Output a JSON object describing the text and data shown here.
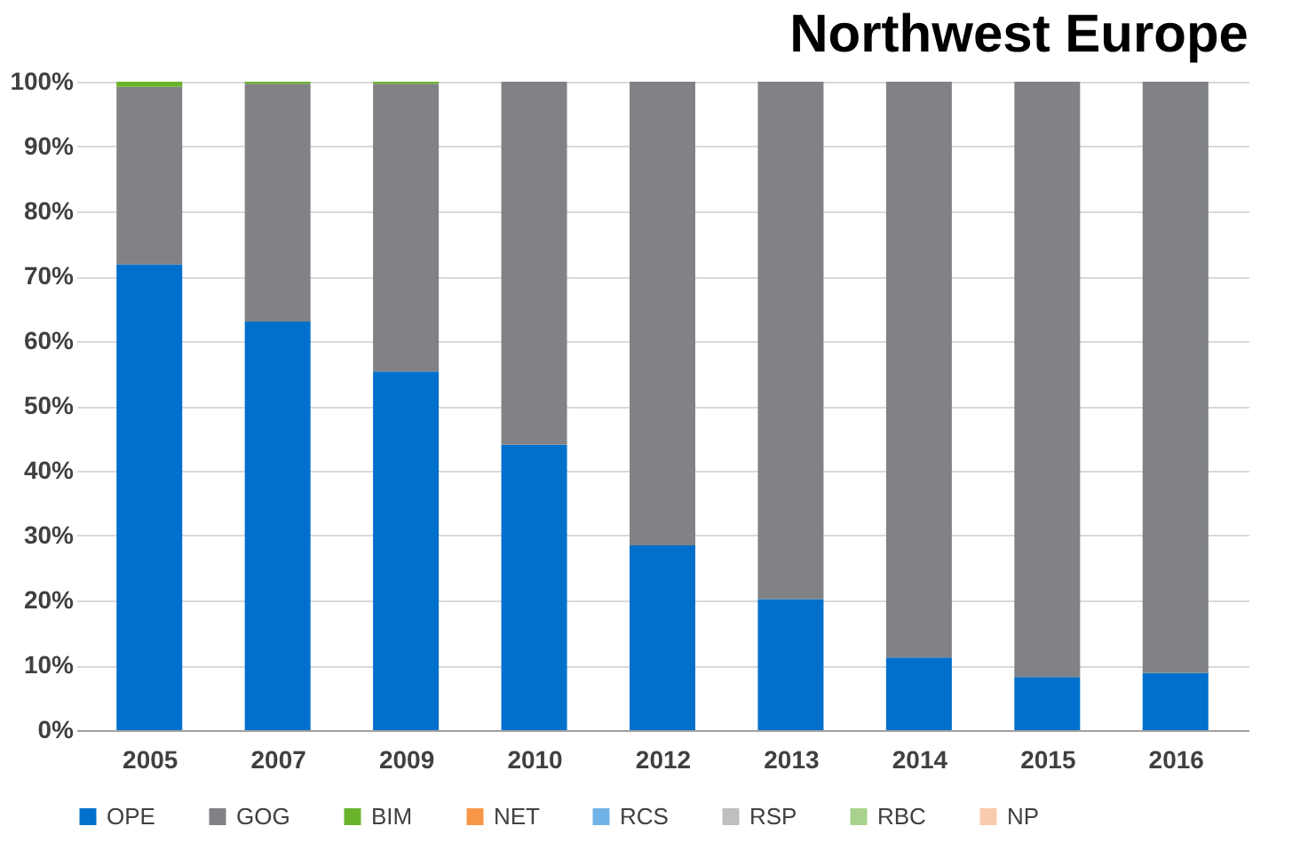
{
  "chart_data": {
    "type": "bar",
    "title": "Northwest Europe",
    "stacked": true,
    "categories": [
      "2005",
      "2007",
      "2009",
      "2010",
      "2012",
      "2013",
      "2014",
      "2015",
      "2016"
    ],
    "series": [
      {
        "name": "OPE",
        "color": "#0070cc",
        "values": [
          71.8,
          63,
          55.3,
          44,
          28.5,
          20.2,
          11.2,
          8.2,
          8.8
        ]
      },
      {
        "name": "GOG",
        "color": "#808285",
        "values": [
          27.4,
          36.7,
          44.4,
          56,
          71.5,
          79.8,
          88.8,
          91.8,
          91.2
        ]
      },
      {
        "name": "BIM",
        "color": "#6ab42d",
        "values": [
          0.8,
          0.3,
          0.3,
          0,
          0,
          0,
          0,
          0,
          0
        ]
      },
      {
        "name": "NET",
        "color": "#f79646",
        "values": [
          0,
          0,
          0,
          0,
          0,
          0,
          0,
          0,
          0
        ]
      },
      {
        "name": "RCS",
        "color": "#6fb2e8",
        "values": [
          0,
          0,
          0,
          0,
          0,
          0,
          0,
          0,
          0
        ]
      },
      {
        "name": "RSP",
        "color": "#bfbfbf",
        "values": [
          0,
          0,
          0,
          0,
          0,
          0,
          0,
          0,
          0
        ]
      },
      {
        "name": "RBC",
        "color": "#a9d18e",
        "values": [
          0,
          0,
          0,
          0,
          0,
          0,
          0,
          0,
          0
        ]
      },
      {
        "name": "NP",
        "color": "#f8cbad",
        "values": [
          0,
          0,
          0,
          0,
          0,
          0,
          0,
          0,
          0
        ]
      }
    ],
    "ylim": [
      0,
      100
    ],
    "yticks": [
      {
        "value": 0,
        "label": "0%"
      },
      {
        "value": 10,
        "label": "10%"
      },
      {
        "value": 20,
        "label": "20%"
      },
      {
        "value": 30,
        "label": "30%"
      },
      {
        "value": 40,
        "label": "40%"
      },
      {
        "value": 50,
        "label": "50%"
      },
      {
        "value": 60,
        "label": "60%"
      },
      {
        "value": 70,
        "label": "70%"
      },
      {
        "value": 80,
        "label": "80%"
      },
      {
        "value": 90,
        "label": "90%"
      },
      {
        "value": 100,
        "label": "100%"
      }
    ],
    "grid": "y",
    "legend": "bottom"
  }
}
